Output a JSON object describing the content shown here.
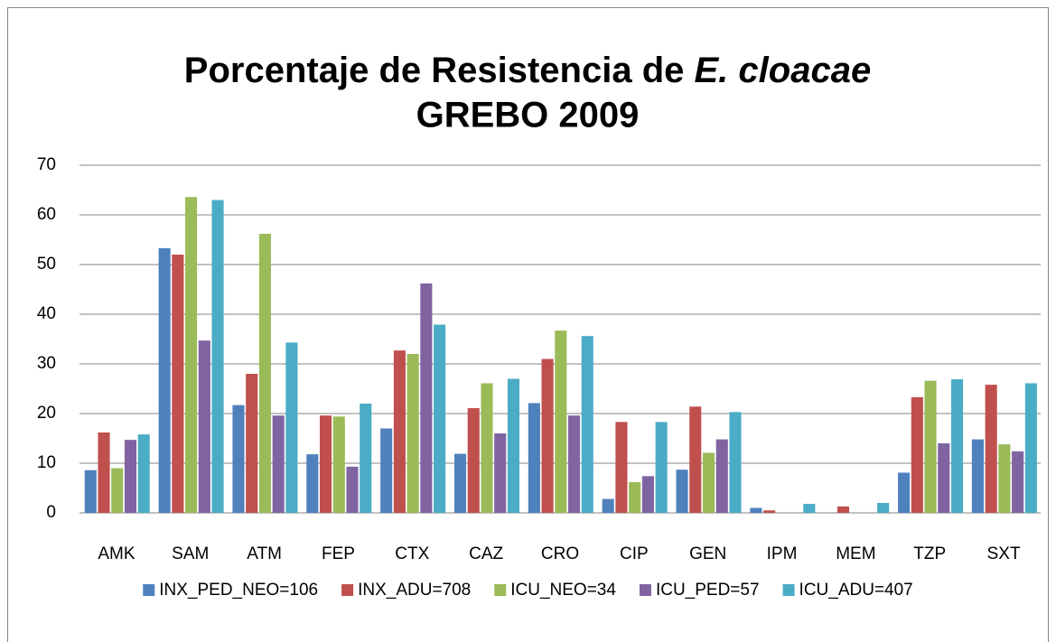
{
  "chart_data": {
    "type": "bar",
    "title": {
      "line1": "Porcentaje de Resistencia de",
      "italic": "E. cloacae",
      "line2": "GREBO 2009"
    },
    "categories": [
      "AMK",
      "SAM",
      "ATM",
      "FEP",
      "CTX",
      "CAZ",
      "CRO",
      "CIP",
      "GEN",
      "IPM",
      "MEM",
      "TZP",
      "SXT"
    ],
    "series": [
      {
        "name": "INX_PED_NEO=106",
        "color": "#4f81bd",
        "values": [
          8.6,
          53.3,
          21.7,
          11.8,
          17,
          11.9,
          22.1,
          2.8,
          8.7,
          1,
          0,
          8.1,
          14.8
        ]
      },
      {
        "name": "INX_ADU=708",
        "color": "#c0504d",
        "values": [
          16.2,
          52,
          28,
          19.6,
          32.7,
          21.1,
          31,
          18.3,
          21.4,
          0.5,
          1.3,
          23.3,
          25.8
        ]
      },
      {
        "name": "ICU_NEO=34",
        "color": "#9bbb59",
        "values": [
          9,
          63.6,
          56.2,
          19.4,
          32,
          26.1,
          36.7,
          6.2,
          12.1,
          0,
          0,
          26.6,
          13.8
        ]
      },
      {
        "name": "ICU_PED=57",
        "color": "#8064a2",
        "values": [
          14.7,
          34.7,
          19.6,
          9.3,
          46.2,
          16,
          19.6,
          7.4,
          14.8,
          0,
          0,
          14,
          12.4
        ]
      },
      {
        "name": "ICU_ADU=407",
        "color": "#4bacc6",
        "values": [
          15.8,
          63,
          34.3,
          22,
          37.9,
          27,
          35.6,
          18.3,
          20.3,
          1.8,
          2,
          26.9,
          26.1
        ]
      }
    ],
    "ylim": [
      0,
      70
    ],
    "yticks": [
      0,
      10,
      20,
      30,
      40,
      50,
      60,
      70
    ],
    "grid": true,
    "legend": "bottom"
  }
}
